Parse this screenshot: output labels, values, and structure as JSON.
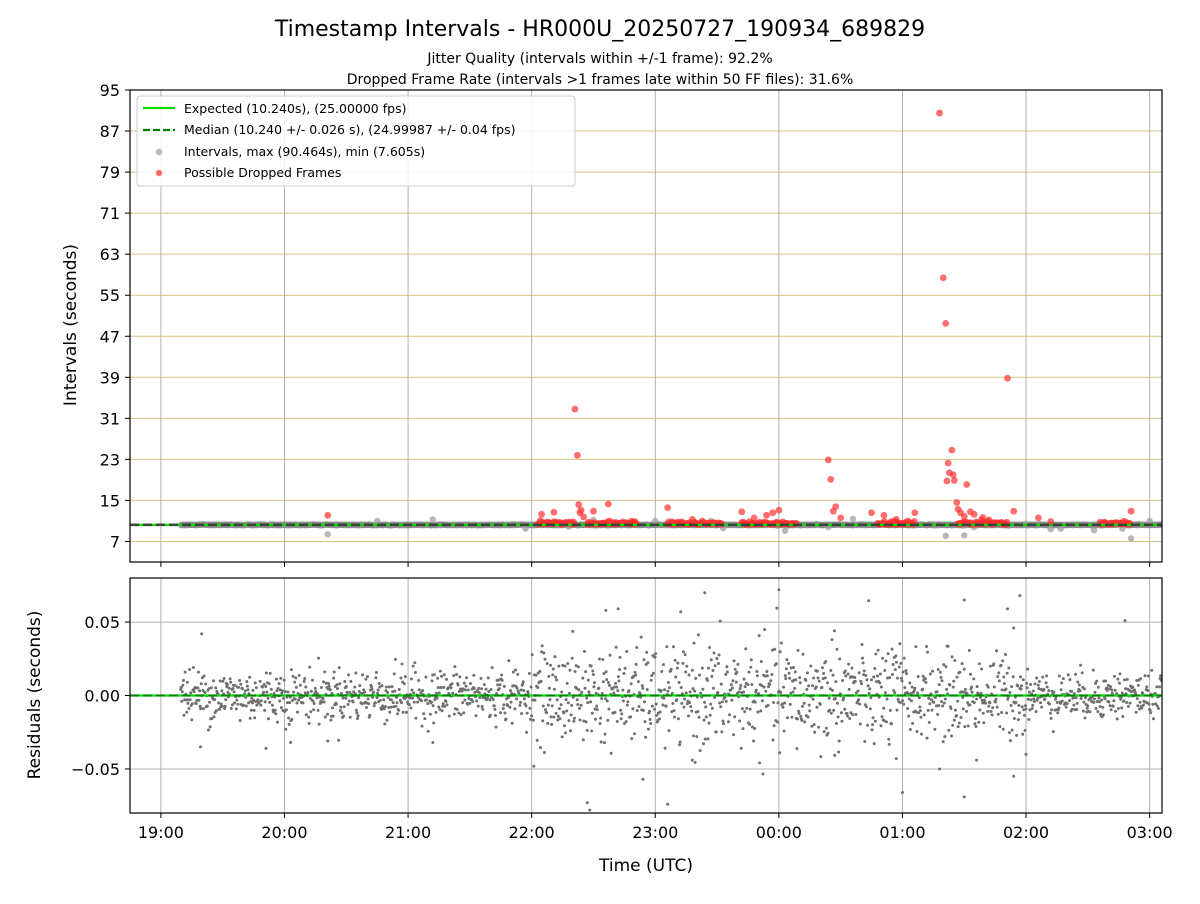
{
  "chart_data": [
    {
      "type": "scatter",
      "title": "Timestamp Intervals - HR000U_20250727_190934_689829",
      "subtitles": [
        "Jitter Quality (intervals within +/-1 frame): 92.2%",
        "Dropped Frame Rate (intervals >1 frames late within 50 FF files): 31.6%"
      ],
      "xlabel": "",
      "ylabel": "Intervals (seconds)",
      "x_unit": "hours since 19:00 UTC 2025-07-27",
      "xlim": [
        -0.25,
        8.1
      ],
      "ylim": [
        3,
        95
      ],
      "y_ticks": [
        7,
        15,
        23,
        31,
        39,
        47,
        55,
        63,
        71,
        79,
        87,
        95
      ],
      "x_ticks": [
        0,
        1,
        2,
        3,
        4,
        5,
        6,
        7,
        8
      ],
      "x_tick_labels": [
        "19:00",
        "20:00",
        "21:00",
        "22:00",
        "23:00",
        "00:00",
        "01:00",
        "02:00",
        "03:00"
      ],
      "grid": true,
      "legend_position": "top-left",
      "legend": {
        "expected": "Expected (10.240s), (25.00000 fps)",
        "median": "Median (10.240 +/- 0.026 s), (24.99987 +/- 0.04 fps)",
        "intervals": "Intervals, max (90.464s), min (7.605s)",
        "dropped": "Possible Dropped Frames"
      },
      "expected_interval": 10.24,
      "median_interval": 10.24,
      "normal_range": [
        0.16,
        8.1
      ],
      "dropped_cluster_ranges": [
        [
          3.05,
          3.35
        ],
        [
          3.45,
          3.85
        ],
        [
          4.1,
          4.55
        ],
        [
          4.7,
          5.15
        ],
        [
          5.8,
          6.1
        ],
        [
          6.45,
          6.85
        ],
        [
          7.6,
          7.85
        ]
      ],
      "series": [
        {
          "name": "Intervals, max (90.464s), min (7.605s)",
          "color": "#a0a0a0",
          "points": [
            [
              1.35,
              8.4
            ],
            [
              5.05,
              9.1
            ],
            [
              5.4,
              9.8
            ],
            [
              6.35,
              8.1
            ],
            [
              6.5,
              8.2
            ],
            [
              6.58,
              9.8
            ],
            [
              7.0,
              10.5
            ],
            [
              7.2,
              9.4
            ],
            [
              7.28,
              9.5
            ],
            [
              7.55,
              9.2
            ],
            [
              7.78,
              9.5
            ],
            [
              7.85,
              7.6
            ],
            [
              3.3,
              9.9
            ],
            [
              2.95,
              9.5
            ],
            [
              4.55,
              9.6
            ],
            [
              3.5,
              11.2
            ],
            [
              2.2,
              11.3
            ],
            [
              4.0,
              11.0
            ],
            [
              5.6,
              11.4
            ],
            [
              8.0,
              11.0
            ],
            [
              1.75,
              11.0
            ],
            [
              4.45,
              11.0
            ]
          ]
        },
        {
          "name": "Possible Dropped Frames",
          "color": "#ff4040",
          "points": [
            [
              1.35,
              12.1
            ],
            [
              3.08,
              12.3
            ],
            [
              3.18,
              12.7
            ],
            [
              3.35,
              32.8
            ],
            [
              3.37,
              23.8
            ],
            [
              3.38,
              14.2
            ],
            [
              3.39,
              12.6
            ],
            [
              3.4,
              13.1
            ],
            [
              3.42,
              11.8
            ],
            [
              3.5,
              12.9
            ],
            [
              3.62,
              14.3
            ],
            [
              4.1,
              13.6
            ],
            [
              4.3,
              11.3
            ],
            [
              4.7,
              12.8
            ],
            [
              4.8,
              11.6
            ],
            [
              4.9,
              12.1
            ],
            [
              4.95,
              12.6
            ],
            [
              5.0,
              13.1
            ],
            [
              5.4,
              22.9
            ],
            [
              5.42,
              19.1
            ],
            [
              5.44,
              12.9
            ],
            [
              5.46,
              13.8
            ],
            [
              5.5,
              11.6
            ],
            [
              5.75,
              12.6
            ],
            [
              5.85,
              12.1
            ],
            [
              5.95,
              11.3
            ],
            [
              6.1,
              12.6
            ],
            [
              6.3,
              90.5
            ],
            [
              6.33,
              58.4
            ],
            [
              6.35,
              49.5
            ],
            [
              6.36,
              18.8
            ],
            [
              6.37,
              22.3
            ],
            [
              6.38,
              20.4
            ],
            [
              6.4,
              24.8
            ],
            [
              6.41,
              20.0
            ],
            [
              6.42,
              18.9
            ],
            [
              6.44,
              14.6
            ],
            [
              6.45,
              13.3
            ],
            [
              6.47,
              12.6
            ],
            [
              6.5,
              11.9
            ],
            [
              6.52,
              18.1
            ],
            [
              6.55,
              12.8
            ],
            [
              6.58,
              12.3
            ],
            [
              6.65,
              11.7
            ],
            [
              6.7,
              11.2
            ],
            [
              6.85,
              38.8
            ],
            [
              6.9,
              12.9
            ],
            [
              7.1,
              11.6
            ],
            [
              7.2,
              10.9
            ],
            [
              7.85,
              12.9
            ]
          ]
        }
      ]
    },
    {
      "type": "scatter",
      "xlabel": "Time (UTC)",
      "ylabel": "Residuals (seconds)",
      "x_unit": "hours since 19:00 UTC 2025-07-27",
      "xlim": [
        -0.25,
        8.1
      ],
      "ylim": [
        -0.08,
        0.08
      ],
      "y_ticks": [
        -0.05,
        0.0,
        0.05
      ],
      "y_tick_labels": [
        "−0.05",
        "0.00",
        "0.05"
      ],
      "x_ticks": [
        0,
        1,
        2,
        3,
        4,
        5,
        6,
        7,
        8
      ],
      "x_tick_labels": [
        "19:00",
        "20:00",
        "21:00",
        "22:00",
        "23:00",
        "00:00",
        "01:00",
        "02:00",
        "03:00"
      ],
      "grid": true,
      "residual_range": [
        0.16,
        8.1
      ],
      "noise_profile": [
        {
          "from": 0.16,
          "to": 3.0,
          "spread": 0.009
        },
        {
          "from": 3.0,
          "to": 4.3,
          "spread": 0.016
        },
        {
          "from": 4.3,
          "to": 6.0,
          "spread": 0.018
        },
        {
          "from": 6.0,
          "to": 7.0,
          "spread": 0.014
        },
        {
          "from": 7.0,
          "to": 8.1,
          "spread": 0.008
        }
      ],
      "outliers": [
        [
          0.33,
          0.042
        ],
        [
          0.32,
          -0.035
        ],
        [
          0.85,
          -0.036
        ],
        [
          1.05,
          -0.032
        ],
        [
          1.35,
          -0.031
        ],
        [
          2.2,
          -0.032
        ],
        [
          3.45,
          -0.073
        ],
        [
          3.47,
          -0.078
        ],
        [
          3.6,
          0.058
        ],
        [
          3.7,
          0.059
        ],
        [
          3.9,
          -0.057
        ],
        [
          4.1,
          -0.074
        ],
        [
          4.4,
          0.07
        ],
        [
          4.3,
          -0.044
        ],
        [
          5.0,
          0.072
        ],
        [
          5.45,
          0.044
        ],
        [
          5.95,
          -0.043
        ],
        [
          6.0,
          -0.066
        ],
        [
          6.3,
          -0.05
        ],
        [
          6.5,
          0.065
        ],
        [
          6.5,
          -0.069
        ],
        [
          6.6,
          -0.044
        ],
        [
          6.85,
          0.059
        ],
        [
          6.9,
          -0.055
        ],
        [
          6.95,
          0.068
        ],
        [
          6.9,
          0.046
        ],
        [
          7.8,
          0.051
        ],
        [
          7.0,
          -0.04
        ]
      ],
      "series": [
        {
          "name": "",
          "color": "#707070"
        }
      ],
      "reference_line": {
        "value": 0.0,
        "color": "#00e000"
      }
    }
  ]
}
